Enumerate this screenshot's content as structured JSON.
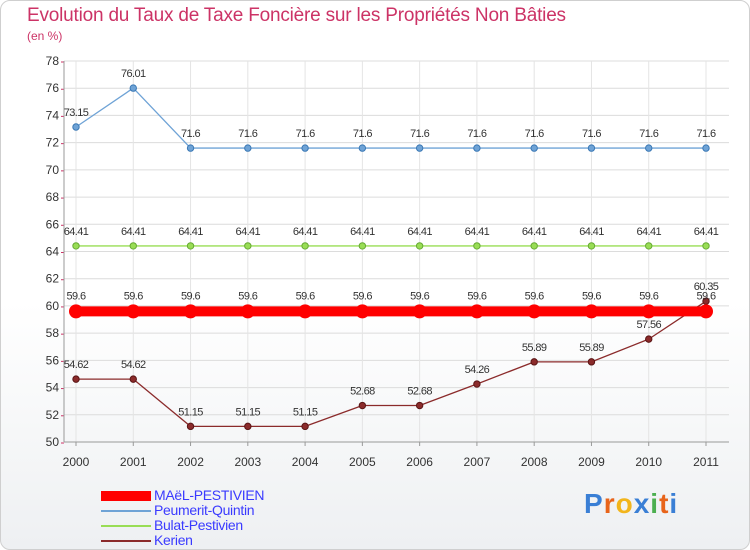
{
  "title": "Evolution du Taux de Taxe Foncière sur les Propriétés Non Bâties",
  "subtitle": "(en %)",
  "brand": {
    "text": "Proxiti",
    "letter_colors": [
      "#3a7fd5",
      "#e8641a",
      "#f2b51c",
      "#3a7fd5",
      "#4caf50",
      "#e8641a",
      "#3a7fd5"
    ]
  },
  "chart_data": {
    "type": "line",
    "title": "Evolution du Taux de Taxe Foncière sur les Propriétés Non Bâties",
    "ylabel": "(en %)",
    "xlabel": "",
    "ylim": [
      50,
      78
    ],
    "yticks": [
      50,
      52,
      54,
      56,
      58,
      60,
      62,
      64,
      66,
      68,
      70,
      72,
      74,
      76,
      78
    ],
    "grid": true,
    "legend_position": "bottom-left",
    "categories": [
      "2000",
      "2001",
      "2002",
      "2003",
      "2004",
      "2005",
      "2006",
      "2007",
      "2008",
      "2009",
      "2010",
      "2011"
    ],
    "series": [
      {
        "name": "MAëL-PESTIVIEN",
        "color": "#ff0000",
        "values": [
          59.6,
          59.6,
          59.6,
          59.6,
          59.6,
          59.6,
          59.6,
          59.6,
          59.6,
          59.6,
          59.6,
          59.6
        ],
        "labels": [
          "59.6",
          "59.6",
          "59.6",
          "59.6",
          "59.6",
          "59.6",
          "59.6",
          "59.6",
          "59.6",
          "59.6",
          "59.6",
          "59.6"
        ]
      },
      {
        "name": "Peumerit-Quintin",
        "color": "#6fa3d6",
        "values": [
          73.15,
          76.01,
          71.6,
          71.6,
          71.6,
          71.6,
          71.6,
          71.6,
          71.6,
          71.6,
          71.6,
          71.6
        ],
        "labels": [
          "73.15",
          "76.01",
          "71.6",
          "71.6",
          "71.6",
          "71.6",
          "71.6",
          "71.6",
          "71.6",
          "71.6",
          "71.6",
          "71.6"
        ]
      },
      {
        "name": "Bulat-Pestivien",
        "color": "#99dd55",
        "values": [
          64.41,
          64.41,
          64.41,
          64.41,
          64.41,
          64.41,
          64.41,
          64.41,
          64.41,
          64.41,
          64.41,
          64.41
        ],
        "labels": [
          "64.41",
          "64.41",
          "64.41",
          "64.41",
          "64.41",
          "64.41",
          "64.41",
          "64.41",
          "64.41",
          "64.41",
          "64.41",
          "64.41"
        ]
      },
      {
        "name": "Kerien",
        "color": "#8b2b2b",
        "values": [
          54.62,
          54.62,
          51.15,
          51.15,
          51.15,
          52.68,
          52.68,
          54.26,
          55.89,
          55.89,
          57.56,
          60.35
        ],
        "labels": [
          "54.62",
          "54.62",
          "51.15",
          "51.15",
          "51.15",
          "52.68",
          "52.68",
          "54.26",
          "55.89",
          "55.89",
          "57.56",
          "60.35"
        ]
      }
    ]
  }
}
